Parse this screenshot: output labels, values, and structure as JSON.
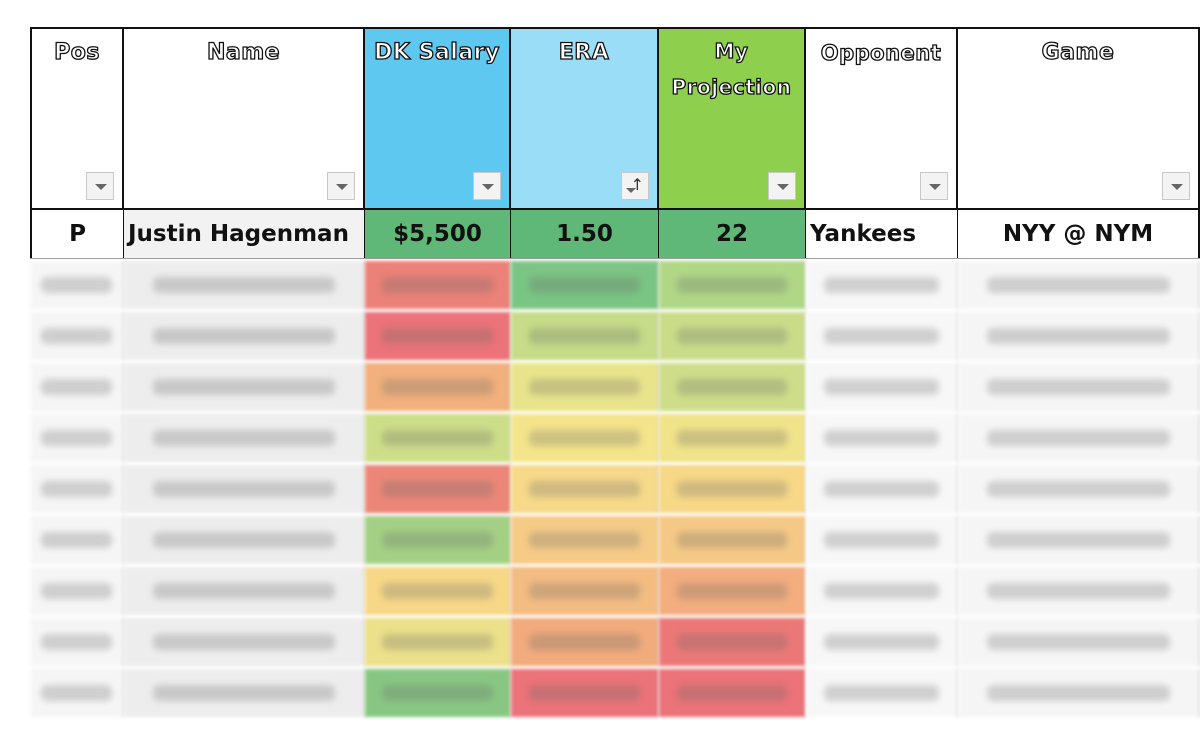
{
  "columns": [
    {
      "label": "Pos",
      "filter": "dropdown"
    },
    {
      "label": "Name",
      "filter": "dropdown"
    },
    {
      "label": "DK Salary",
      "filter": "dropdown",
      "color": "#5fc8f0"
    },
    {
      "label": "ERA",
      "filter": "sort-ascending",
      "color": "#9addf7"
    },
    {
      "label": "My Projection",
      "filter": "dropdown",
      "color": "#8fcf4e"
    },
    {
      "label": "Opponent",
      "filter": "dropdown"
    },
    {
      "label": "Game",
      "filter": "dropdown"
    }
  ],
  "first_row": {
    "pos": "P",
    "name": "Justin Hagenman",
    "salary": "$5,500",
    "era": "1.50",
    "projection": "22",
    "opponent": "Yankees",
    "game": "NYY @ NYM"
  },
  "heat_colors": {
    "first_row": {
      "salary": "#5fb877",
      "era": "#5fb877",
      "projection": "#5fb877"
    },
    "blurred_rows": [
      {
        "salary": "#e9746a",
        "era": "#6dbf77",
        "projection": "#a8d37a"
      },
      {
        "salary": "#e9646b",
        "era": "#c0d97c",
        "projection": "#c4d97c"
      },
      {
        "salary": "#f0a86f",
        "era": "#e7e27f",
        "projection": "#c9da7d"
      },
      {
        "salary": "#c8db7d",
        "era": "#f3e27f",
        "projection": "#efe07e"
      },
      {
        "salary": "#e97a6a",
        "era": "#f6d57d",
        "projection": "#f6d47b"
      },
      {
        "salary": "#9bcc78",
        "era": "#f5c67a",
        "projection": "#f4c378"
      },
      {
        "salary": "#f6d47b",
        "era": "#f3b574",
        "projection": "#f2a571"
      },
      {
        "salary": "#eade7e",
        "era": "#f0a26f",
        "projection": "#e96a69"
      },
      {
        "salary": "#7cc276",
        "era": "#e9646b",
        "projection": "#e9646b"
      }
    ]
  },
  "blurred_rows_note_hidden": true
}
